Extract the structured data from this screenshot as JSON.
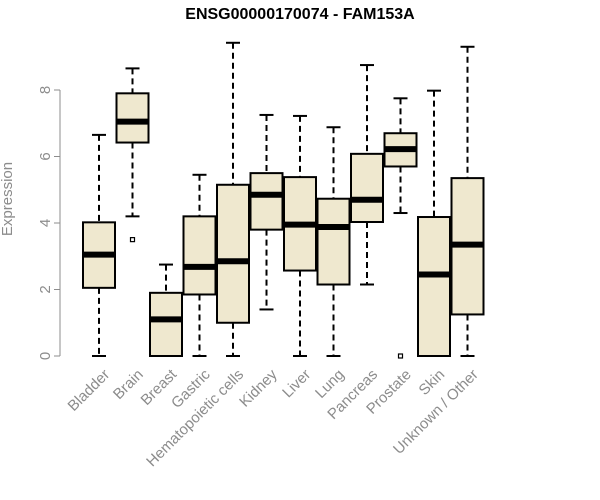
{
  "chart_data": {
    "type": "boxplot",
    "title": "ENSG00000170074 - FAM153A",
    "xlabel": "",
    "ylabel": "Expression",
    "ylim": [
      0,
      9.5
    ],
    "yticks": [
      0,
      2,
      4,
      6,
      8
    ],
    "grid": false,
    "box_fill": "#efe8cf",
    "categories": [
      "Bladder",
      "Brain",
      "Breast",
      "Gastric",
      "Hematopoietic cells",
      "Kidney",
      "Liver",
      "Lung",
      "Pancreas",
      "Prostate",
      "Skin",
      "Unknown / Other"
    ],
    "boxes": [
      {
        "min": 0.0,
        "q1": 2.05,
        "median": 3.05,
        "q3": 4.02,
        "max": 6.65,
        "outliers": []
      },
      {
        "min": 4.2,
        "q1": 6.42,
        "median": 7.05,
        "q3": 7.9,
        "max": 8.65,
        "outliers": [
          3.5
        ]
      },
      {
        "min": 0.0,
        "q1": 0.0,
        "median": 1.1,
        "q3": 1.9,
        "max": 2.75,
        "outliers": []
      },
      {
        "min": 0.0,
        "q1": 1.85,
        "median": 2.68,
        "q3": 4.2,
        "max": 5.45,
        "outliers": []
      },
      {
        "min": 0.0,
        "q1": 1.0,
        "median": 2.85,
        "q3": 5.15,
        "max": 9.42,
        "outliers": []
      },
      {
        "min": 1.4,
        "q1": 3.8,
        "median": 4.85,
        "q3": 5.5,
        "max": 7.25,
        "outliers": []
      },
      {
        "min": 0.0,
        "q1": 2.57,
        "median": 3.95,
        "q3": 5.38,
        "max": 7.22,
        "outliers": []
      },
      {
        "min": 0.0,
        "q1": 2.15,
        "median": 3.88,
        "q3": 4.73,
        "max": 6.88,
        "outliers": []
      },
      {
        "min": 2.15,
        "q1": 4.03,
        "median": 4.7,
        "q3": 6.08,
        "max": 8.75,
        "outliers": []
      },
      {
        "min": 4.3,
        "q1": 5.7,
        "median": 6.22,
        "q3": 6.7,
        "max": 7.75,
        "outliers": [
          0.0
        ]
      },
      {
        "min": 0.0,
        "q1": 0.0,
        "median": 2.45,
        "q3": 4.18,
        "max": 7.98,
        "outliers": []
      },
      {
        "min": 0.0,
        "q1": 1.25,
        "median": 3.35,
        "q3": 5.35,
        "max": 9.3,
        "outliers": []
      }
    ]
  }
}
